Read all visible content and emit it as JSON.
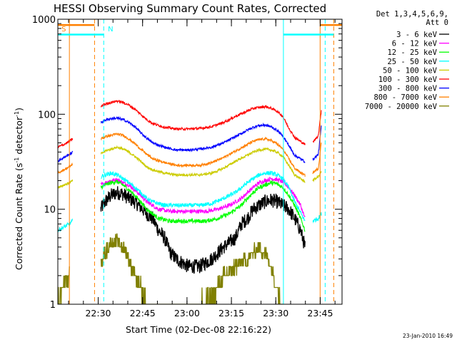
{
  "chart_data": {
    "type": "line",
    "title": "HESSI Observing Summary Count Rates, Corrected",
    "xlabel": "Start Time (02-Dec-08 22:16:22)",
    "ylabel": "Corrected Count Rate (s⁻¹ detector⁻¹)",
    "ylabel_main": "Corrected Count Rate (s",
    "ylabel_sup1": "-1",
    "ylabel_mid": " detector",
    "ylabel_sup2": "-1",
    "ylabel_end": ")",
    "y_scale": "log",
    "ylim": [
      1,
      1000
    ],
    "xlim_minutes": [
      0,
      96
    ],
    "x_tick_labels": [
      "22:30",
      "22:45",
      "23:00",
      "23:15",
      "23:30",
      "23:45"
    ],
    "x_tick_minutes": [
      13.63,
      28.63,
      43.63,
      58.63,
      73.63,
      88.63
    ],
    "y_tick_labels": [
      "1",
      "10",
      "100",
      "1000"
    ],
    "y_tick_values": [
      1,
      10,
      100,
      1000
    ],
    "legend_header": [
      "Det 1,3,4,5,6,9,",
      "Att 0"
    ],
    "legend_placement": "right",
    "series": [
      {
        "name": "3 - 6 keV",
        "color": "#000000",
        "values": [
          [
            14.5,
            10
          ],
          [
            16,
            12
          ],
          [
            18,
            14
          ],
          [
            20,
            15
          ],
          [
            22,
            14.5
          ],
          [
            24,
            13
          ],
          [
            26,
            12
          ],
          [
            28,
            10.5
          ],
          [
            30,
            9
          ],
          [
            32,
            8
          ],
          [
            34,
            6
          ],
          [
            36,
            5
          ],
          [
            38,
            3.5
          ],
          [
            40,
            3
          ],
          [
            44,
            2.5
          ],
          [
            48,
            2.5
          ],
          [
            52,
            3
          ],
          [
            56,
            4
          ],
          [
            60,
            5
          ],
          [
            62,
            7
          ],
          [
            64,
            8
          ],
          [
            66,
            10
          ],
          [
            68,
            11
          ],
          [
            70,
            12
          ],
          [
            72,
            12.5
          ],
          [
            74,
            12
          ],
          [
            76,
            11
          ],
          [
            78,
            10
          ],
          [
            80,
            8
          ],
          [
            82,
            6
          ],
          [
            83.5,
            4
          ]
        ]
      },
      {
        "name": "6 - 12 keV",
        "color": "#ff00ff",
        "values": [
          [
            14.5,
            18
          ],
          [
            16,
            19
          ],
          [
            18,
            20
          ],
          [
            20,
            20.5
          ],
          [
            22,
            19
          ],
          [
            24,
            18
          ],
          [
            26,
            16
          ],
          [
            28,
            14
          ],
          [
            30,
            12
          ],
          [
            32,
            11
          ],
          [
            34,
            10
          ],
          [
            38,
            9.5
          ],
          [
            42,
            9.5
          ],
          [
            46,
            9.5
          ],
          [
            50,
            9.5
          ],
          [
            54,
            10
          ],
          [
            58,
            11
          ],
          [
            62,
            13
          ],
          [
            64,
            15
          ],
          [
            66,
            17
          ],
          [
            68,
            19
          ],
          [
            70,
            20
          ],
          [
            72,
            21
          ],
          [
            74,
            20.5
          ],
          [
            76,
            19.5
          ],
          [
            78,
            17
          ],
          [
            80,
            14
          ],
          [
            82,
            11
          ],
          [
            83.5,
            8
          ]
        ]
      },
      {
        "name": "12 - 25 keV",
        "color": "#00ff00",
        "values": [
          [
            14.5,
            17
          ],
          [
            16,
            18
          ],
          [
            18,
            19
          ],
          [
            20,
            19.5
          ],
          [
            22,
            18
          ],
          [
            24,
            16
          ],
          [
            26,
            14
          ],
          [
            28,
            12
          ],
          [
            30,
            10
          ],
          [
            32,
            9
          ],
          [
            34,
            8
          ],
          [
            38,
            7.5
          ],
          [
            42,
            7.5
          ],
          [
            46,
            7.5
          ],
          [
            50,
            7.5
          ],
          [
            54,
            8
          ],
          [
            58,
            9
          ],
          [
            62,
            11
          ],
          [
            64,
            13
          ],
          [
            66,
            15
          ],
          [
            68,
            17
          ],
          [
            70,
            18
          ],
          [
            72,
            19
          ],
          [
            74,
            18.5
          ],
          [
            76,
            17
          ],
          [
            78,
            14
          ],
          [
            80,
            11
          ],
          [
            82,
            8
          ],
          [
            83.5,
            6
          ]
        ]
      },
      {
        "name": "25 - 50 keV",
        "color": "#00ffff",
        "values": [
          [
            0,
            6
          ],
          [
            2,
            6.5
          ],
          [
            4,
            7
          ],
          [
            5,
            7.5
          ],
          [
            14.5,
            22
          ],
          [
            16,
            23
          ],
          [
            18,
            24
          ],
          [
            20,
            23
          ],
          [
            22,
            21
          ],
          [
            24,
            19
          ],
          [
            26,
            17
          ],
          [
            28,
            15
          ],
          [
            30,
            13
          ],
          [
            32,
            12
          ],
          [
            36,
            11
          ],
          [
            40,
            11
          ],
          [
            44,
            11
          ],
          [
            48,
            11
          ],
          [
            52,
            11.5
          ],
          [
            56,
            13
          ],
          [
            60,
            15
          ],
          [
            64,
            19
          ],
          [
            66,
            21
          ],
          [
            68,
            23
          ],
          [
            70,
            24
          ],
          [
            72,
            24
          ],
          [
            74,
            23
          ],
          [
            76,
            21
          ],
          [
            78,
            17
          ],
          [
            80,
            12
          ],
          [
            84,
            7
          ],
          [
            86,
            7.5
          ],
          [
            88,
            8
          ],
          [
            89,
            9
          ]
        ]
      },
      {
        "name": "50 - 100 keV",
        "color": "#cccc00",
        "values": [
          [
            0,
            17
          ],
          [
            2,
            18
          ],
          [
            4,
            19
          ],
          [
            5,
            20
          ],
          [
            14.5,
            38
          ],
          [
            16,
            41
          ],
          [
            18,
            43
          ],
          [
            20,
            45
          ],
          [
            22,
            43
          ],
          [
            24,
            40
          ],
          [
            26,
            36
          ],
          [
            28,
            32
          ],
          [
            30,
            28
          ],
          [
            32,
            26
          ],
          [
            36,
            24
          ],
          [
            40,
            23
          ],
          [
            44,
            23
          ],
          [
            48,
            23
          ],
          [
            52,
            24
          ],
          [
            56,
            27
          ],
          [
            60,
            32
          ],
          [
            64,
            37
          ],
          [
            66,
            40
          ],
          [
            68,
            42
          ],
          [
            70,
            43
          ],
          [
            72,
            42
          ],
          [
            74,
            40
          ],
          [
            76,
            36
          ],
          [
            78,
            29
          ],
          [
            80,
            23
          ],
          [
            84,
            19
          ],
          [
            86,
            20
          ],
          [
            88,
            22
          ],
          [
            89,
            25
          ]
        ]
      },
      {
        "name": "100 - 300 keV",
        "color": "#ff0000",
        "values": [
          [
            0,
            45
          ],
          [
            2,
            48
          ],
          [
            4,
            52
          ],
          [
            5,
            55
          ],
          [
            14.5,
            120
          ],
          [
            16,
            128
          ],
          [
            18,
            133
          ],
          [
            20,
            138
          ],
          [
            22,
            133
          ],
          [
            24,
            125
          ],
          [
            26,
            113
          ],
          [
            28,
            100
          ],
          [
            30,
            88
          ],
          [
            32,
            80
          ],
          [
            36,
            73
          ],
          [
            40,
            70
          ],
          [
            44,
            70
          ],
          [
            48,
            71
          ],
          [
            52,
            74
          ],
          [
            56,
            82
          ],
          [
            60,
            95
          ],
          [
            64,
            108
          ],
          [
            66,
            115
          ],
          [
            68,
            118
          ],
          [
            70,
            120
          ],
          [
            72,
            116
          ],
          [
            74,
            108
          ],
          [
            76,
            95
          ],
          [
            78,
            72
          ],
          [
            80,
            57
          ],
          [
            84,
            47
          ],
          [
            86,
            50
          ],
          [
            88,
            60
          ],
          [
            89,
            110
          ]
        ]
      },
      {
        "name": "300 - 800 keV",
        "color": "#0000ff",
        "values": [
          [
            0,
            32
          ],
          [
            2,
            35
          ],
          [
            4,
            38
          ],
          [
            5,
            40
          ],
          [
            14.5,
            82
          ],
          [
            16,
            87
          ],
          [
            18,
            90
          ],
          [
            20,
            91
          ],
          [
            22,
            88
          ],
          [
            24,
            82
          ],
          [
            26,
            74
          ],
          [
            28,
            64
          ],
          [
            30,
            56
          ],
          [
            32,
            50
          ],
          [
            36,
            45
          ],
          [
            40,
            42
          ],
          [
            44,
            42
          ],
          [
            48,
            43
          ],
          [
            52,
            45
          ],
          [
            56,
            50
          ],
          [
            60,
            58
          ],
          [
            64,
            68
          ],
          [
            66,
            73
          ],
          [
            68,
            76
          ],
          [
            70,
            77
          ],
          [
            72,
            74
          ],
          [
            74,
            68
          ],
          [
            76,
            59
          ],
          [
            78,
            47
          ],
          [
            80,
            37
          ],
          [
            84,
            31
          ],
          [
            86,
            33
          ],
          [
            88,
            38
          ],
          [
            89,
            75
          ]
        ]
      },
      {
        "name": "800 - 7000 keV",
        "color": "#ff8000",
        "values": [
          [
            0,
            24
          ],
          [
            2,
            26
          ],
          [
            4,
            28
          ],
          [
            5,
            30
          ],
          [
            14.5,
            55
          ],
          [
            16,
            58
          ],
          [
            18,
            60
          ],
          [
            20,
            62
          ],
          [
            22,
            60
          ],
          [
            24,
            55
          ],
          [
            26,
            49
          ],
          [
            28,
            43
          ],
          [
            30,
            38
          ],
          [
            32,
            34
          ],
          [
            36,
            31
          ],
          [
            40,
            29
          ],
          [
            44,
            29
          ],
          [
            48,
            29
          ],
          [
            52,
            31
          ],
          [
            56,
            35
          ],
          [
            60,
            41
          ],
          [
            64,
            48
          ],
          [
            66,
            52
          ],
          [
            68,
            54
          ],
          [
            70,
            55
          ],
          [
            72,
            53
          ],
          [
            74,
            49
          ],
          [
            76,
            43
          ],
          [
            78,
            34
          ],
          [
            80,
            27
          ],
          [
            84,
            22
          ],
          [
            86,
            24
          ],
          [
            88,
            27
          ],
          [
            89,
            50
          ]
        ]
      },
      {
        "name": "7000 - 20000 keV",
        "color": "#808000",
        "values": [
          [
            0,
            1.2
          ],
          [
            4,
            2
          ],
          [
            14.5,
            3
          ],
          [
            16,
            3.5
          ],
          [
            18,
            4.5
          ],
          [
            20,
            4.5
          ],
          [
            22,
            4
          ],
          [
            24,
            3
          ],
          [
            26,
            2
          ],
          [
            28,
            1.5
          ],
          [
            30,
            1
          ],
          [
            46,
            1
          ],
          [
            52,
            1.2
          ],
          [
            56,
            2
          ],
          [
            60,
            2.5
          ],
          [
            64,
            3
          ],
          [
            66,
            3.5
          ],
          [
            68,
            4
          ],
          [
            70,
            3.5
          ],
          [
            72,
            2.5
          ],
          [
            74,
            1.5
          ],
          [
            76,
            1
          ]
        ]
      }
    ],
    "annotations": [
      {
        "text": "S",
        "color": "#ff8000",
        "minute": 0.5
      },
      {
        "text": "N",
        "color": "#00ffff",
        "minute": 16.2
      }
    ],
    "vertical_lines": [
      {
        "minute": 3.9,
        "color": "#ff8000",
        "style": "solid"
      },
      {
        "minute": 12.4,
        "color": "#ff8000",
        "style": "dashed"
      },
      {
        "minute": 15.5,
        "color": "#00ffff",
        "style": "dashed"
      },
      {
        "minute": 76.2,
        "color": "#00ffff",
        "style": "solid"
      },
      {
        "minute": 88.6,
        "color": "#ff8000",
        "style": "solid"
      },
      {
        "minute": 90.3,
        "color": "#00ffff",
        "style": "dashed"
      },
      {
        "minute": 93.2,
        "color": "#ff8000",
        "style": "dashed"
      }
    ],
    "bars_top": [
      {
        "from": 0,
        "to": 12.4,
        "color": "#ff8000",
        "level": 870
      },
      {
        "from": 0,
        "to": 15.5,
        "color": "#00ffff",
        "level": 690
      },
      {
        "from": 76.2,
        "to": 93.2,
        "color": "#00ffff",
        "level": 690
      },
      {
        "from": 88.6,
        "to": 96,
        "color": "#ff8000",
        "level": 870
      }
    ],
    "gaps": [
      [
        5,
        14.5
      ],
      [
        83.5,
        86
      ]
    ]
  },
  "footer_timestamp": "23-Jan-2010 16:49"
}
